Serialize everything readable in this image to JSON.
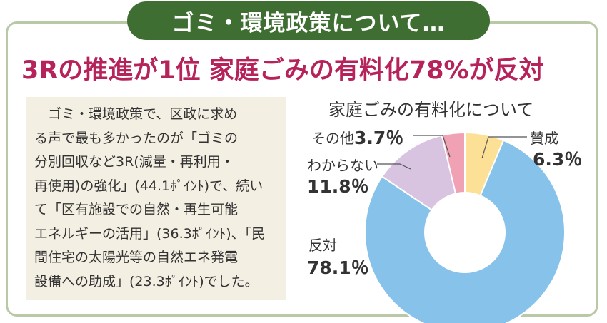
{
  "banner": {
    "title": "ゴミ・環境政策について…"
  },
  "headline": "3Rの推進が1位 家庭ごみの有料化78%が反対",
  "body": {
    "lines": [
      "　ゴミ・環境政策で、区政に求め",
      "る声で最も多かったのが「ゴミの",
      "分別回収など3R(減量・再利用・",
      "再使用)の強化」(44.1ﾎﾟｲﾝﾄ)で、続い",
      "て「区有施設での自然・再生可能",
      "エネルギーの活用」(36.3ﾎﾟｲﾝﾄ)、「民",
      "間住宅の太陽光等の自然エネ発電",
      "設備への助成」(23.3ﾎﾟｲﾝﾄ)でした。"
    ]
  },
  "chart_data": {
    "type": "pie",
    "title": "家庭ごみの有料化について",
    "donut": true,
    "categories": [
      "賛成",
      "反対",
      "わからない",
      "その他"
    ],
    "values": [
      6.3,
      78.1,
      11.8,
      3.7
    ],
    "value_labels": [
      "6.3％",
      "78.1％",
      "11.8％",
      "3.7％"
    ],
    "colors": [
      "#fbe095",
      "#86c2ea",
      "#d8c4e0",
      "#f0a1b3"
    ]
  }
}
